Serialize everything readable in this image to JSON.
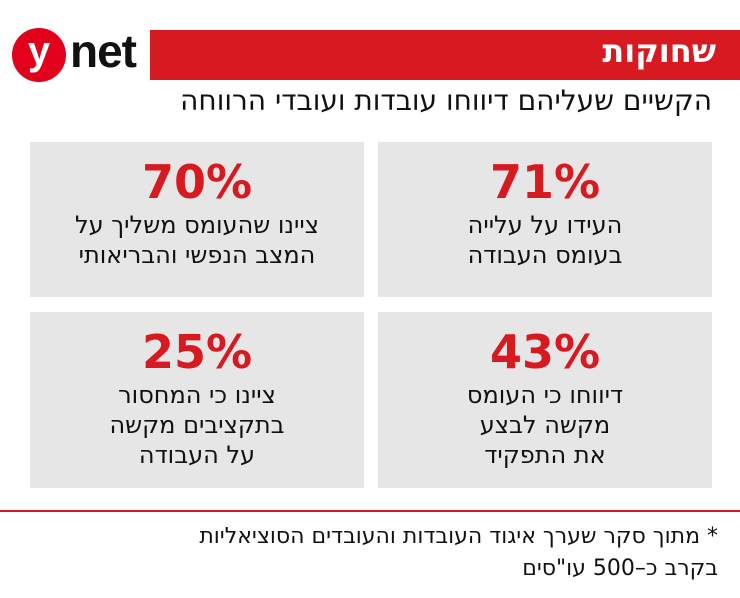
{
  "header": {
    "logo_y": "y",
    "logo_net": "net",
    "section": "שחוקות",
    "title": "הקשיים שעליהם דיווחו עובדות ועובדי הרווחה"
  },
  "cards": [
    {
      "value": "71%",
      "lines": [
        "העידו על עלייה",
        "בעומס העבודה"
      ]
    },
    {
      "value": "70%",
      "lines": [
        "ציינו שהעומס משליך על",
        "המצב הנפשי והבריאותי"
      ]
    },
    {
      "value": "43%",
      "lines": [
        "דיווחו כי העומס",
        "מקשה לבצע",
        "את התפקיד"
      ]
    },
    {
      "value": "25%",
      "lines": [
        "ציינו כי המחסור",
        "בתקציבים מקשה",
        "על העבודה"
      ]
    }
  ],
  "footnote": [
    "* מתוך סקר שערך איגוד העובדות והעובדים הסוציאליות",
    "בקרב כ–500 עו\"סים"
  ]
}
